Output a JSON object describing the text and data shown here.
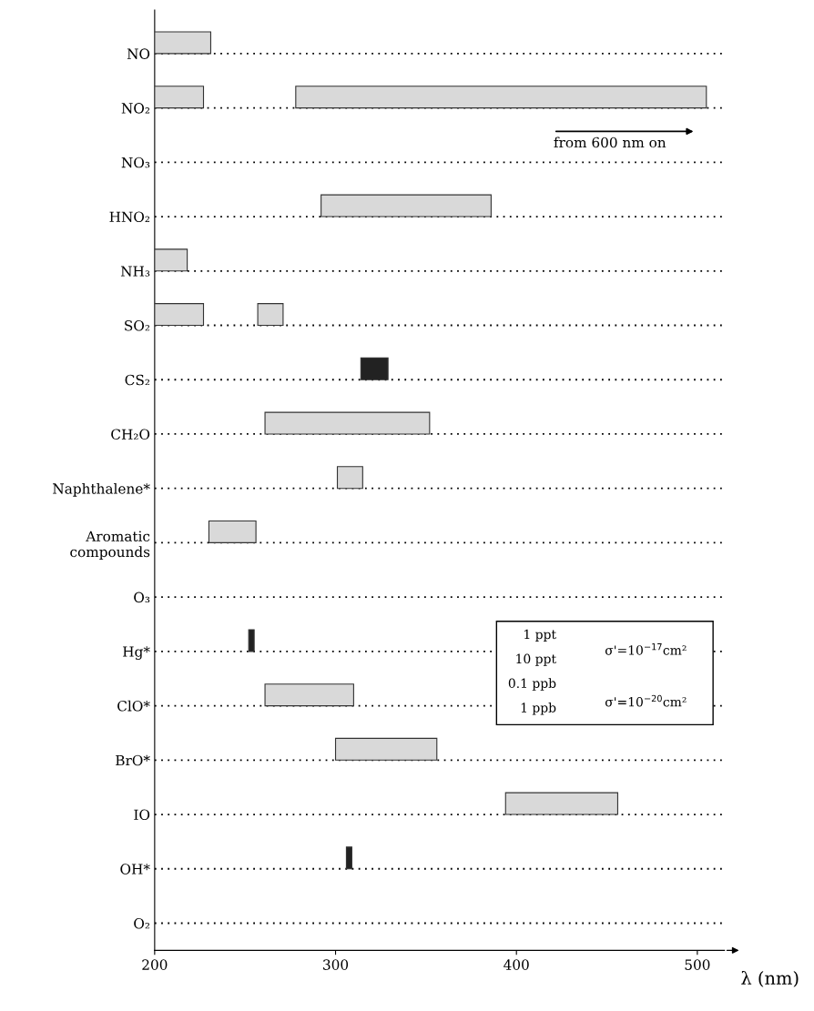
{
  "chart_data": {
    "type": "bar",
    "orientation": "horizontal",
    "xlabel": "λ (nm)",
    "categories": [
      "NO",
      "NO₂",
      "NO₃",
      "HNO₂",
      "NH₃",
      "SO₂",
      "CS₂",
      "CH₂O",
      "Naphthalene*",
      "Aromatic\ncompounds",
      "O₃",
      "Hg*",
      "ClO*",
      "BrO*",
      "IO",
      "OH*",
      "O₂"
    ],
    "series": [
      {
        "color": "#d9d9d9",
        "colors": [
          "#d9d9d9",
          "#d9d9d9",
          null,
          "#d9d9d9",
          "#d9d9d9",
          "#d9d9d9",
          "#222222",
          "#d9d9d9",
          "#d9d9d9",
          "#d9d9d9",
          null,
          "#222222",
          "#d9d9d9",
          "#d9d9d9",
          "#d9d9d9",
          "#222222",
          null
        ],
        "base": [
          200,
          200,
          null,
          292,
          200,
          200,
          314,
          261,
          301,
          230,
          null,
          252,
          261,
          300,
          394,
          306,
          null
        ],
        "values": [
          31,
          27,
          null,
          94,
          18,
          27,
          15,
          91,
          14,
          26,
          null,
          3,
          49,
          56,
          62,
          3,
          null
        ]
      },
      {
        "color": "#d9d9d9",
        "base": [
          null,
          278,
          null,
          null,
          null,
          257,
          null,
          null,
          null,
          null,
          null,
          null,
          null,
          null,
          null,
          null,
          null
        ],
        "values": [
          null,
          227,
          null,
          null,
          null,
          14,
          null,
          null,
          null,
          null,
          null,
          null,
          null,
          null,
          null,
          null,
          null
        ]
      }
    ],
    "xlim": [
      200,
      515
    ],
    "xticks": [
      200,
      300,
      400,
      500
    ],
    "grid": "y",
    "annotations": [
      "from 600 nm on",
      "1 ppt",
      "10 ppt",
      "0.1 ppb",
      "1 ppb",
      "σ'=10$^{−17}$cm²",
      "σ'=10$^{−20}$cm²"
    ]
  }
}
